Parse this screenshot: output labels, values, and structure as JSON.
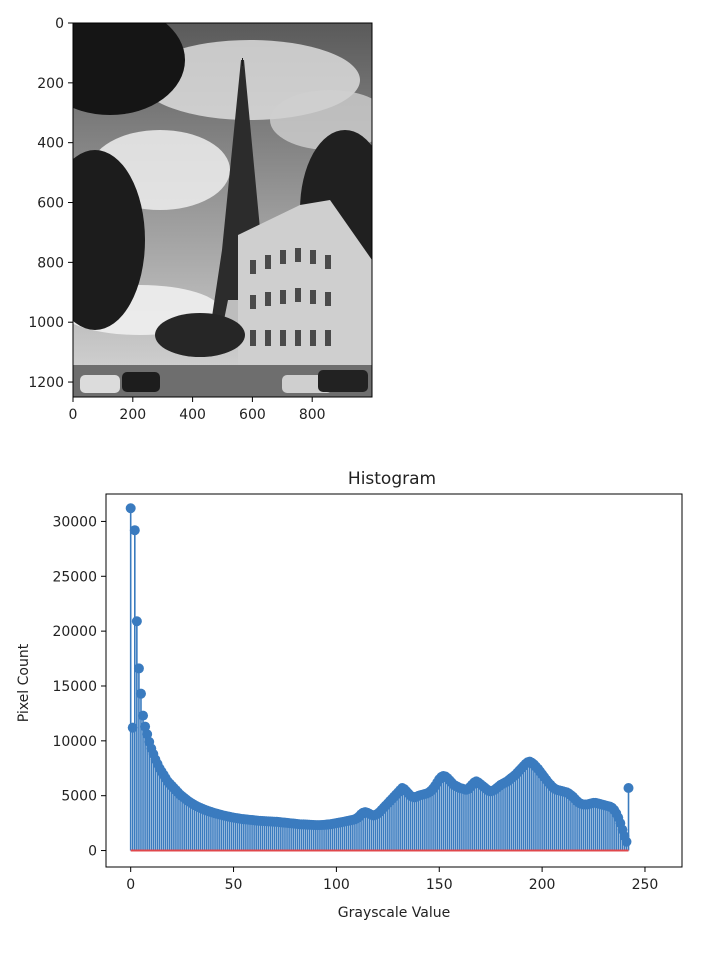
{
  "chart_data": [
    {
      "type": "image",
      "description_visible": "grayscale photo of Eiffel Tower street scene",
      "xlim": [
        0,
        1000
      ],
      "ylim": [
        1250,
        0
      ],
      "xticks": [
        "0",
        "200",
        "400",
        "600",
        "800"
      ],
      "yticks": [
        "0",
        "200",
        "400",
        "600",
        "800",
        "1000",
        "1200"
      ],
      "xtick_values": [
        0,
        200,
        400,
        600,
        800
      ],
      "ytick_values": [
        0,
        200,
        400,
        600,
        800,
        1000,
        1200
      ]
    },
    {
      "type": "stem",
      "title": "Histogram",
      "xlabel": "Grayscale Value",
      "ylabel": "Pixel Count",
      "xlim": [
        -12,
        268
      ],
      "ylim": [
        -1500,
        32500
      ],
      "xticks": [
        "0",
        "50",
        "100",
        "150",
        "200",
        "250"
      ],
      "xtick_values": [
        0,
        50,
        100,
        150,
        200,
        250
      ],
      "yticks": [
        "0",
        "5000",
        "10000",
        "15000",
        "20000",
        "25000",
        "30000"
      ],
      "ytick_values": [
        0,
        5000,
        10000,
        15000,
        20000,
        25000,
        30000
      ],
      "stem_color": "#3a7bbf",
      "baseline_color": "#e0474c",
      "x_start": 0,
      "values": [
        31200,
        11200,
        29200,
        20900,
        16600,
        14300,
        12300,
        11300,
        10600,
        9900,
        9300,
        8800,
        8300,
        7900,
        7500,
        7200,
        6900,
        6600,
        6300,
        6100,
        5900,
        5700,
        5500,
        5300,
        5100,
        4950,
        4800,
        4650,
        4500,
        4380,
        4260,
        4150,
        4050,
        3960,
        3880,
        3800,
        3720,
        3650,
        3580,
        3520,
        3460,
        3400,
        3350,
        3300,
        3250,
        3200,
        3160,
        3120,
        3080,
        3040,
        3000,
        2970,
        2940,
        2910,
        2880,
        2860,
        2840,
        2820,
        2800,
        2780,
        2760,
        2740,
        2720,
        2700,
        2690,
        2680,
        2670,
        2660,
        2650,
        2640,
        2630,
        2620,
        2600,
        2580,
        2560,
        2540,
        2520,
        2500,
        2480,
        2460,
        2440,
        2420,
        2400,
        2390,
        2380,
        2370,
        2360,
        2350,
        2340,
        2330,
        2320,
        2320,
        2320,
        2330,
        2340,
        2360,
        2380,
        2400,
        2430,
        2460,
        2500,
        2530,
        2570,
        2600,
        2640,
        2680,
        2720,
        2760,
        2800,
        2850,
        2950,
        3100,
        3300,
        3450,
        3500,
        3450,
        3350,
        3250,
        3200,
        3250,
        3350,
        3500,
        3700,
        3900,
        4100,
        4300,
        4500,
        4700,
        4900,
        5100,
        5300,
        5500,
        5700,
        5600,
        5400,
        5200,
        5000,
        4900,
        4850,
        4900,
        5000,
        5050,
        5100,
        5150,
        5200,
        5300,
        5450,
        5650,
        5900,
        6200,
        6500,
        6700,
        6800,
        6750,
        6600,
        6400,
        6200,
        6000,
        5900,
        5800,
        5700,
        5650,
        5600,
        5550,
        5600,
        5800,
        6000,
        6200,
        6300,
        6200,
        6050,
        5900,
        5750,
        5600,
        5450,
        5400,
        5450,
        5550,
        5700,
        5850,
        6000,
        6100,
        6200,
        6300,
        6450,
        6600,
        6750,
        6900,
        7100,
        7300,
        7500,
        7700,
        7900,
        8050,
        8100,
        8000,
        7850,
        7650,
        7450,
        7200,
        6950,
        6700,
        6450,
        6200,
        6000,
        5800,
        5650,
        5550,
        5500,
        5450,
        5400,
        5350,
        5300,
        5200,
        5050,
        4900,
        4700,
        4500,
        4350,
        4250,
        4200,
        4200,
        4200,
        4250,
        4300,
        4350,
        4350,
        4300,
        4250,
        4200,
        4150,
        4100,
        4050,
        4000,
        3900,
        3700,
        3400,
        3000,
        2500,
        1900,
        1300,
        800,
        5700
      ]
    }
  ]
}
